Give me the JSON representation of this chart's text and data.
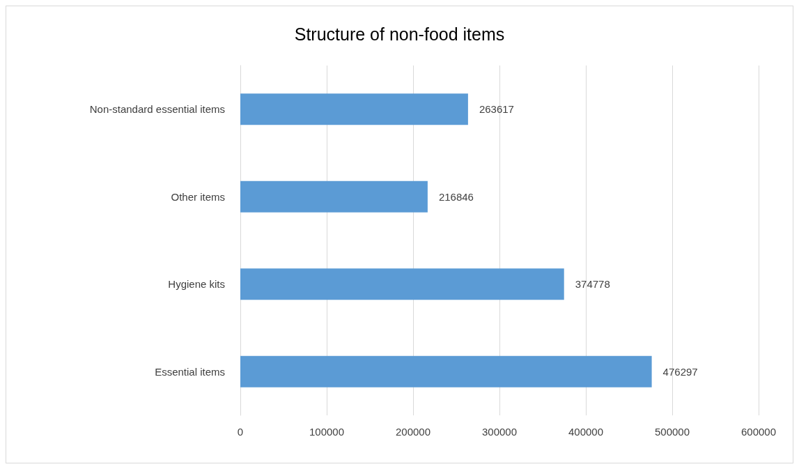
{
  "chart_data": {
    "type": "bar",
    "title": "Structure of non-food items",
    "orientation": "horizontal",
    "categories": [
      "Non-standard essential items",
      "Other items",
      "Hygiene kits",
      "Essential items"
    ],
    "values": [
      263617,
      216846,
      374778,
      476297
    ],
    "color": "#5b9bd5",
    "xlim": [
      0,
      600000
    ],
    "xticks": [
      0,
      100000,
      200000,
      300000,
      400000,
      500000,
      600000
    ],
    "grid": "x",
    "data_labels": true
  }
}
